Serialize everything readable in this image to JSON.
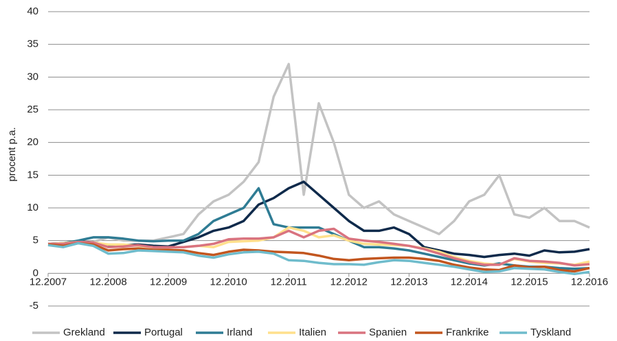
{
  "chart_data": {
    "type": "line",
    "y_label": "procent p.a.",
    "x": [
      "2007-12",
      "2008-03",
      "2008-06",
      "2008-09",
      "2008-12",
      "2009-03",
      "2009-06",
      "2009-09",
      "2009-12",
      "2010-03",
      "2010-06",
      "2010-09",
      "2010-12",
      "2011-03",
      "2011-06",
      "2011-09",
      "2011-12",
      "2012-03",
      "2012-06",
      "2012-09",
      "2012-12",
      "2013-03",
      "2013-06",
      "2013-09",
      "2013-12",
      "2014-03",
      "2014-06",
      "2014-09",
      "2014-12",
      "2015-03",
      "2015-06",
      "2015-09",
      "2015-12",
      "2016-03",
      "2016-06",
      "2016-09",
      "2016-12"
    ],
    "xticks": [
      {
        "value": "2007-12",
        "label": "12.2007"
      },
      {
        "value": "2008-12",
        "label": "12.2008"
      },
      {
        "value": "2009-12",
        "label": "12.2009"
      },
      {
        "value": "2010-12",
        "label": "12.2010"
      },
      {
        "value": "2011-12",
        "label": "12.2011"
      },
      {
        "value": "2012-12",
        "label": "12.2012"
      },
      {
        "value": "2013-12",
        "label": "12.2013"
      },
      {
        "value": "2014-12",
        "label": "12.2014"
      },
      {
        "value": "2015-12",
        "label": "12.2015"
      },
      {
        "value": "2016-12",
        "label": "12.2016"
      }
    ],
    "ylim": [
      -5,
      40
    ],
    "yticks": [
      -5,
      0,
      5,
      10,
      15,
      20,
      25,
      30,
      35,
      40
    ],
    "grid": true,
    "legend": "bottom",
    "series": [
      {
        "name": "Grekland",
        "color": "#c3c3c3",
        "values": [
          4.5,
          4.5,
          4.9,
          4.8,
          5.5,
          5,
          5,
          5,
          5.5,
          6,
          9,
          11,
          12,
          14,
          17,
          27,
          32,
          12,
          26,
          20,
          12,
          10,
          11,
          9,
          8,
          7,
          6,
          8,
          11,
          12,
          15,
          9,
          8.5,
          10,
          8,
          8,
          7
        ]
      },
      {
        "name": "Portugal",
        "color": "#0f2a4b",
        "values": [
          4.5,
          4.6,
          4.9,
          4.7,
          4.2,
          4.3,
          4.4,
          4.2,
          4.1,
          4.8,
          5.5,
          6.5,
          7,
          8,
          10.5,
          11.5,
          13,
          14,
          12,
          10,
          8,
          6.5,
          6.5,
          7,
          6,
          4,
          3.5,
          3,
          2.8,
          2.5,
          2.8,
          3,
          2.7,
          3.5,
          3.2,
          3.3,
          3.7
        ]
      },
      {
        "name": "Irland",
        "color": "#2f7c94",
        "values": [
          4.5,
          4.6,
          5,
          5.5,
          5.5,
          5.3,
          5,
          4.9,
          5,
          5,
          6,
          8,
          9,
          10,
          13,
          7.5,
          7,
          7,
          7,
          6,
          5,
          4,
          4,
          3.8,
          3.5,
          3,
          2.5,
          2,
          1.5,
          1.2,
          1.5,
          1.2,
          1,
          1,
          0.8,
          0.7,
          0.8
        ]
      },
      {
        "name": "Italien",
        "color": "#ffe08c",
        "values": [
          4.5,
          4.6,
          4.8,
          4.7,
          4.4,
          4.4,
          4.2,
          4.0,
          4.0,
          4.0,
          4.2,
          4.0,
          4.8,
          4.9,
          5.0,
          5.5,
          7,
          6.5,
          5.5,
          5.8,
          5,
          4.5,
          4.4,
          4.3,
          4.2,
          3.8,
          3.3,
          2.5,
          1.9,
          1.5,
          1.3,
          2.2,
          1.8,
          1.6,
          1.5,
          1.3,
          1.8
        ]
      },
      {
        "name": "Spanien",
        "color": "#d9737f",
        "values": [
          4.5,
          4.5,
          4.8,
          4.7,
          4.0,
          4.1,
          4.3,
          4.0,
          4.0,
          4.0,
          4.2,
          4.5,
          5.2,
          5.3,
          5.3,
          5.5,
          6.5,
          5.5,
          6.5,
          6.8,
          5.3,
          5,
          4.8,
          4.5,
          4.2,
          3.7,
          3.0,
          2.3,
          1.7,
          1.3,
          1.3,
          2.3,
          1.9,
          1.8,
          1.6,
          1.2,
          1.4
        ]
      },
      {
        "name": "Frankrike",
        "color": "#c2561f",
        "values": [
          4.4,
          4.2,
          4.6,
          4.4,
          3.5,
          3.7,
          3.8,
          3.6,
          3.6,
          3.5,
          3.1,
          2.8,
          3.3,
          3.6,
          3.5,
          3.3,
          3.2,
          3.1,
          2.7,
          2.2,
          2.0,
          2.2,
          2.3,
          2.4,
          2.4,
          2.2,
          1.9,
          1.3,
          0.9,
          0.6,
          0.5,
          1.2,
          0.9,
          1.0,
          0.5,
          0.3,
          0.8
        ]
      },
      {
        "name": "Tyskland",
        "color": "#6fbccc",
        "values": [
          4.3,
          4.0,
          4.6,
          4.2,
          3.0,
          3.1,
          3.5,
          3.4,
          3.3,
          3.2,
          2.7,
          2.4,
          2.9,
          3.2,
          3.3,
          3.0,
          2.0,
          1.9,
          1.6,
          1.4,
          1.4,
          1.3,
          1.7,
          2.0,
          1.9,
          1.6,
          1.3,
          1.0,
          0.6,
          0.2,
          0.3,
          0.8,
          0.7,
          0.6,
          0.2,
          -0.1,
          0.2
        ]
      }
    ]
  }
}
